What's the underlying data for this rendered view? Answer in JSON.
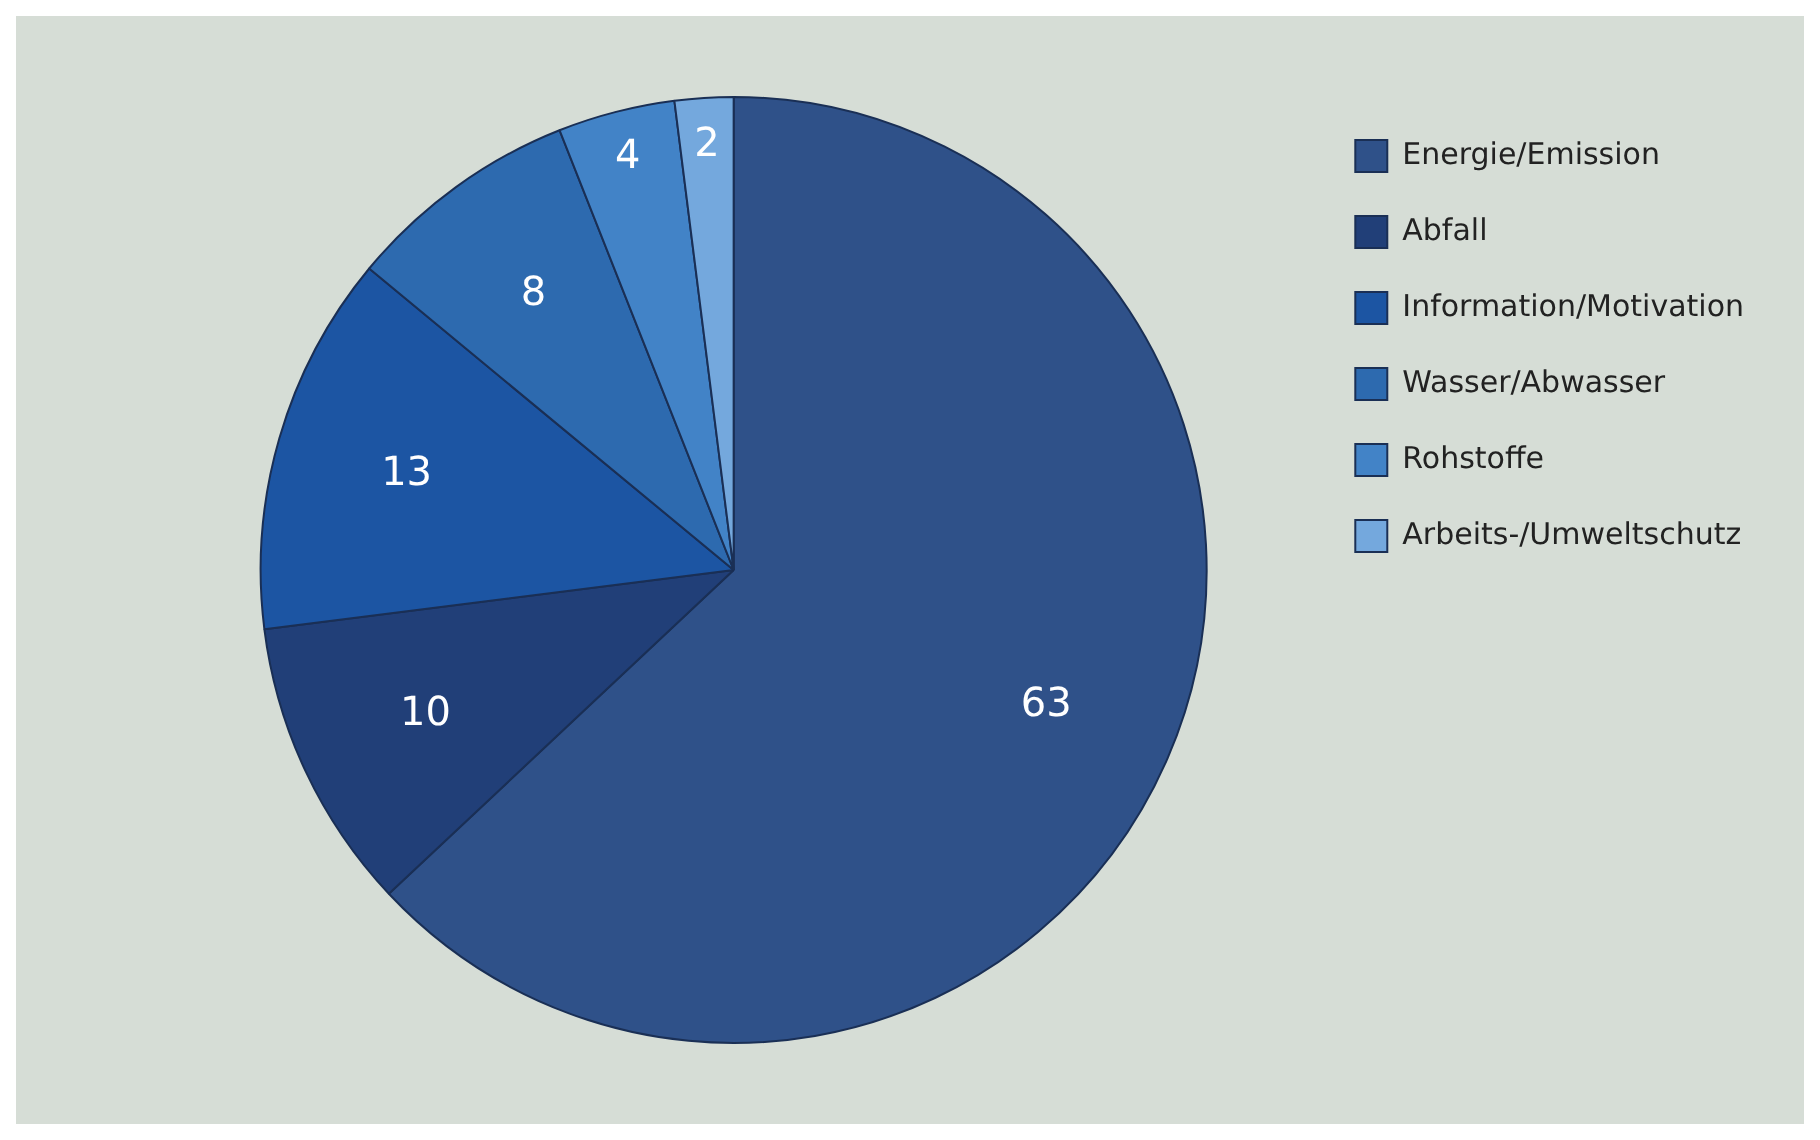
{
  "chart_data": {
    "type": "pie",
    "categories": [
      "Energie/Emission",
      "Abfall",
      "Information/Motivation",
      "Wasser/Abwasser",
      "Rohstoffe",
      "Arbeits-/Umweltschutz"
    ],
    "values": [
      63,
      10,
      13,
      8,
      4,
      2
    ],
    "colors": [
      "#2f5189",
      "#213f78",
      "#1c55a3",
      "#2d6aaf",
      "#4283c7",
      "#74a8dd"
    ],
    "data_labels": true,
    "legend": "right"
  }
}
